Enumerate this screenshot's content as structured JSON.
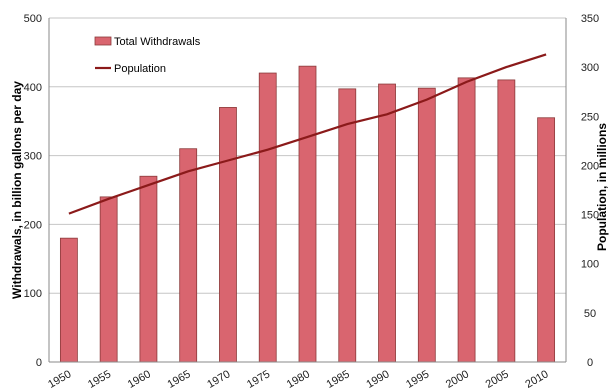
{
  "chart_data": {
    "type": "bar",
    "categories": [
      "1950",
      "1955",
      "1960",
      "1965",
      "1970",
      "1975",
      "1980",
      "1985",
      "1990",
      "1995",
      "2000",
      "2005",
      "2010"
    ],
    "series": [
      {
        "name": "Total Withdrawals",
        "kind": "bar",
        "axis": "left",
        "color": "#d9656f",
        "values": [
          180,
          240,
          270,
          310,
          370,
          420,
          430,
          397,
          404,
          398,
          413,
          410,
          355
        ]
      },
      {
        "name": "Population",
        "kind": "line",
        "axis": "right",
        "color": "#8b1a1a",
        "values": [
          151,
          166,
          180,
          194,
          205,
          216,
          229,
          242,
          252,
          267,
          285,
          300,
          313
        ]
      }
    ],
    "ylabel": "Withdrawals, in billion gallons per day",
    "y2label": "Population, in millions",
    "ylim": [
      0,
      500
    ],
    "y2lim": [
      0,
      350
    ],
    "yticks": [
      "0",
      "100",
      "200",
      "300",
      "400",
      "500"
    ],
    "y2ticks": [
      "0",
      "50",
      "100",
      "150",
      "200",
      "250",
      "300",
      "350"
    ],
    "grid": true,
    "legend_position": "top-left"
  }
}
